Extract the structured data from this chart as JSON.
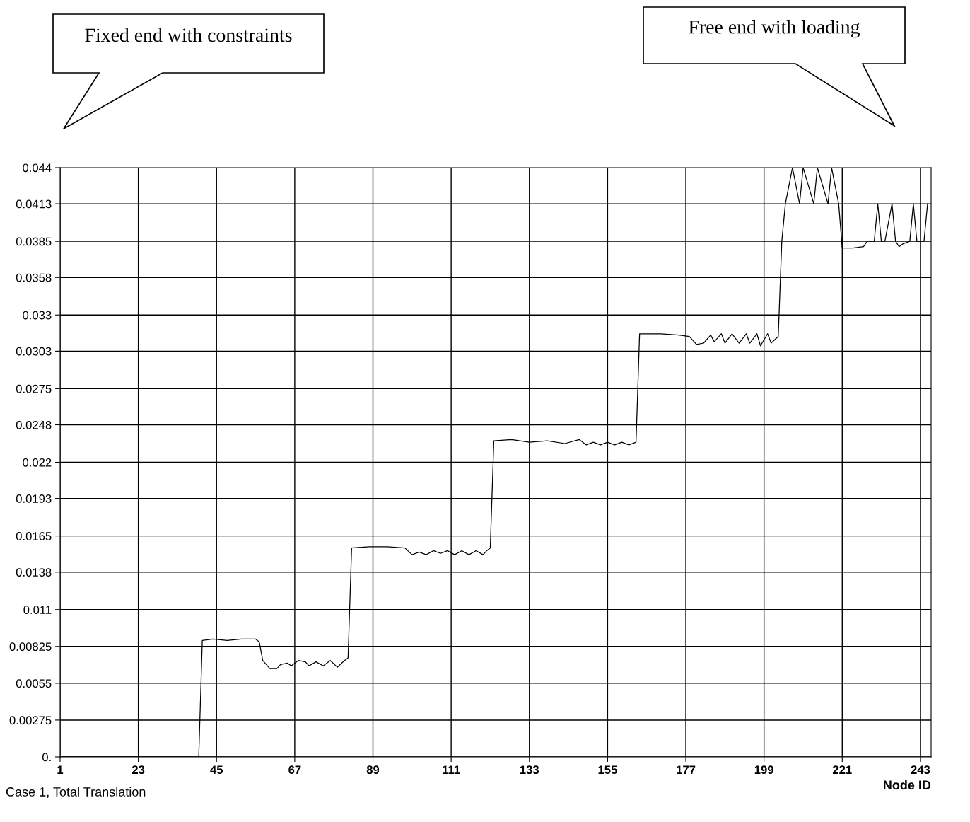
{
  "chart_data": {
    "type": "line",
    "xlabel": "Node ID",
    "annotations": [
      "Fixed end with constraints",
      "Free end with loading",
      "Case 1, Total Translation"
    ],
    "x": [
      1,
      40,
      41,
      44,
      48,
      52,
      56,
      57,
      58,
      60,
      62,
      63,
      65,
      66,
      68,
      70,
      71,
      73,
      75,
      77,
      79,
      81,
      82,
      83,
      88,
      93,
      98,
      100,
      102,
      104,
      106,
      108,
      110,
      112,
      114,
      116,
      118,
      120,
      121,
      122,
      123,
      128,
      133,
      138,
      143,
      147,
      149,
      151,
      153,
      155,
      157,
      159,
      161,
      163,
      164,
      170,
      175,
      178,
      180,
      182,
      184,
      185,
      187,
      188,
      190,
      192,
      194,
      195,
      197,
      198,
      200,
      201,
      203,
      204,
      205,
      207,
      209,
      210,
      213,
      214,
      217,
      218,
      220,
      221,
      224,
      227,
      228,
      230,
      231,
      232,
      233,
      235,
      236,
      237,
      238,
      240,
      241,
      242,
      244,
      245
    ],
    "series": [
      {
        "color": "#000000",
        "values": [
          0,
          0,
          0.0087,
          0.0088,
          0.0087,
          0.0088,
          0.0088,
          0.0086,
          0.0072,
          0.0066,
          0.0066,
          0.0069,
          0.007,
          0.0068,
          0.0072,
          0.0071,
          0.0068,
          0.0071,
          0.0068,
          0.0072,
          0.0067,
          0.0072,
          0.0074,
          0.0156,
          0.0157,
          0.0157,
          0.0156,
          0.0151,
          0.0153,
          0.0151,
          0.0154,
          0.0152,
          0.0154,
          0.0151,
          0.0154,
          0.0151,
          0.0154,
          0.0151,
          0.0154,
          0.0156,
          0.0236,
          0.0237,
          0.0235,
          0.0236,
          0.0234,
          0.0237,
          0.0233,
          0.0235,
          0.0233,
          0.0235,
          0.0233,
          0.0235,
          0.0233,
          0.0235,
          0.0316,
          0.0316,
          0.0315,
          0.0314,
          0.0308,
          0.0309,
          0.0315,
          0.031,
          0.0316,
          0.0309,
          0.0316,
          0.0309,
          0.0316,
          0.0309,
          0.0316,
          0.0307,
          0.0316,
          0.0309,
          0.0314,
          0.0385,
          0.0413,
          0.044,
          0.0413,
          0.044,
          0.0413,
          0.044,
          0.0413,
          0.044,
          0.0413,
          0.038,
          0.038,
          0.0381,
          0.0385,
          0.0385,
          0.0413,
          0.0385,
          0.0385,
          0.0413,
          0.0385,
          0.0381,
          0.0383,
          0.0385,
          0.0413,
          0.0385,
          0.0385,
          0.0413
        ]
      }
    ],
    "xlim": [
      1,
      246
    ],
    "xticks": [
      1,
      23,
      45,
      67,
      89,
      111,
      133,
      155,
      177,
      199,
      221,
      243
    ],
    "ylim": [
      0,
      0.044
    ],
    "yticks": [
      {
        "value": 0,
        "label": "0."
      },
      0.00275,
      0.0055,
      0.00825,
      0.011,
      0.0138,
      0.0165,
      0.0193,
      0.022,
      0.0248,
      0.0275,
      0.0303,
      0.033,
      0.0358,
      0.0385,
      0.0413,
      0.044
    ],
    "grid": true,
    "legend": false,
    "marker": "none",
    "line_style": "solid"
  }
}
